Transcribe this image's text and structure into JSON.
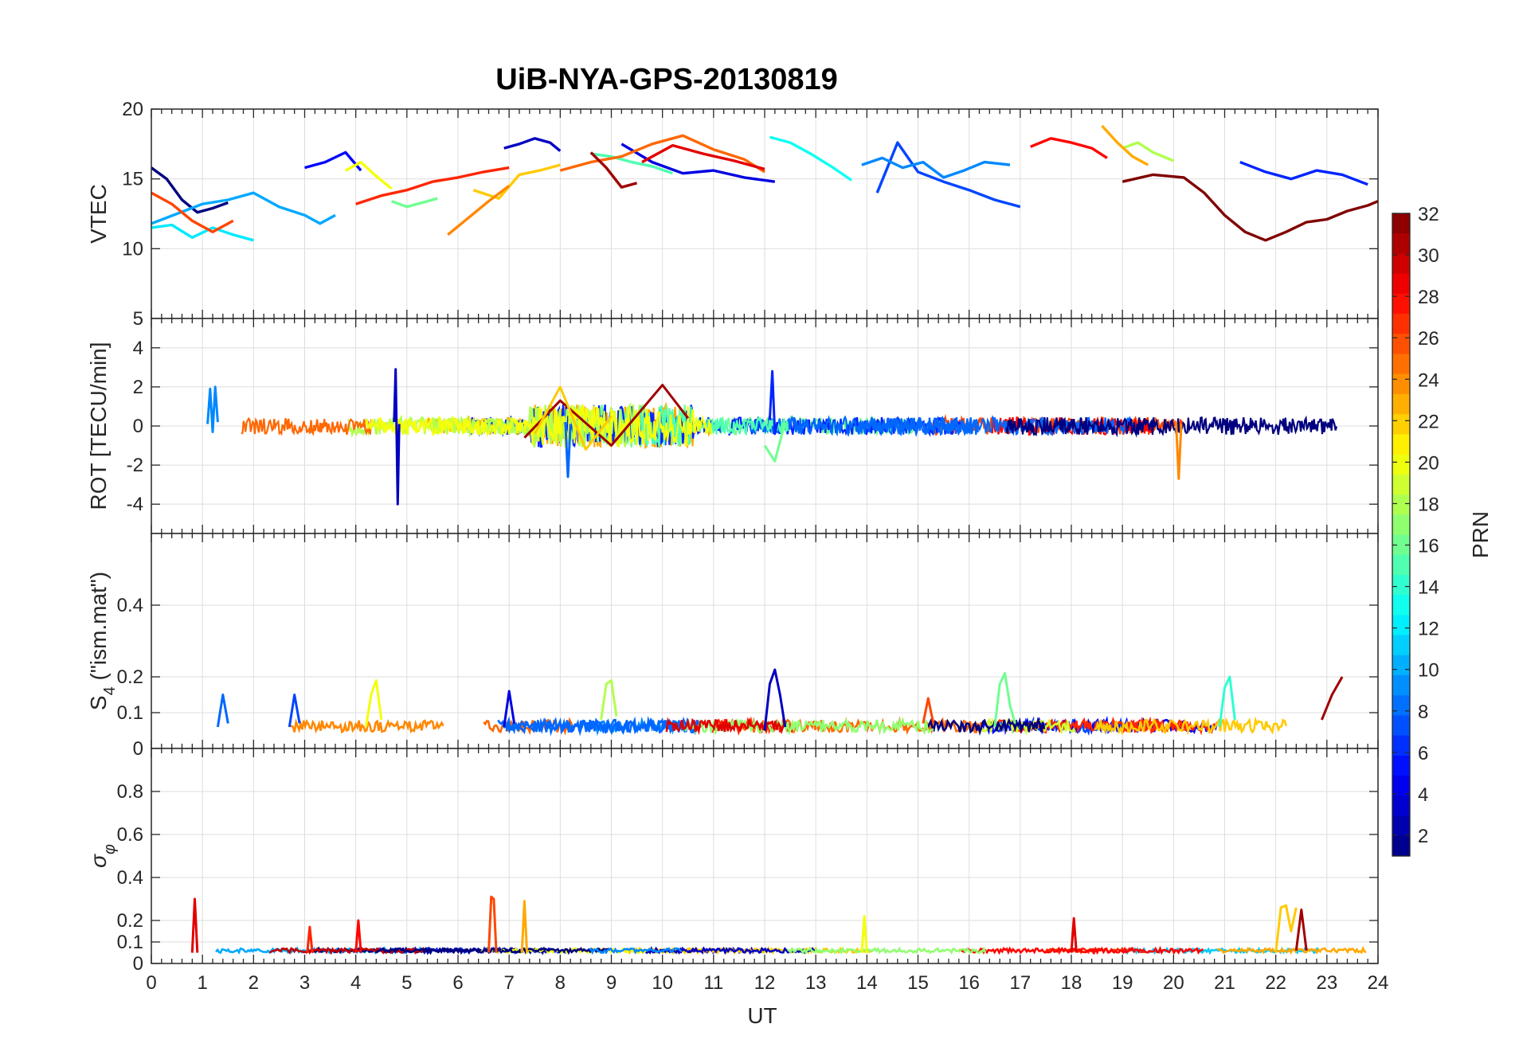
{
  "title": "UiB-NYA-GPS-20130819",
  "xlabel": "UT",
  "x_ticks": [
    0,
    1,
    2,
    3,
    4,
    5,
    6,
    7,
    8,
    9,
    10,
    11,
    12,
    13,
    14,
    15,
    16,
    17,
    18,
    19,
    20,
    21,
    22,
    23,
    24
  ],
  "colorbar": {
    "label": "PRN",
    "range": [
      1,
      32
    ],
    "ticks": [
      2,
      4,
      6,
      8,
      10,
      12,
      14,
      16,
      18,
      20,
      22,
      24,
      26,
      28,
      30,
      32
    ],
    "colormap": "jet",
    "levels": 32
  },
  "panels": {
    "vtec": {
      "ylabel": "VTEC",
      "yticks": [
        5,
        10,
        15,
        20
      ],
      "ylim": [
        5,
        20
      ]
    },
    "rot": {
      "ylabel": "ROT [TECU/min]",
      "yticks": [
        -4,
        -2,
        0,
        2,
        4
      ],
      "ylim": [
        -5.5,
        5.5
      ]
    },
    "s4": {
      "ylabel_main": "S",
      "ylabel_sub": "4",
      "ylabel_rest": " (\"ism.mat\")",
      "yticks": [
        0,
        0.1,
        0.2,
        0.4
      ],
      "ylim": [
        0,
        0.6
      ]
    },
    "sigma": {
      "ylabel_main": "σ",
      "ylabel_sub": "φ",
      "yticks": [
        0,
        0.1,
        0.2,
        0.4,
        0.6,
        0.8
      ],
      "ylim": [
        0,
        1
      ]
    }
  },
  "chart_data": [
    {
      "type": "line",
      "title": "UiB-NYA-GPS-20130819",
      "xlabel": "UT",
      "ylabel": "VTEC",
      "xlim": [
        0,
        24
      ],
      "ylim": [
        5,
        20
      ],
      "grid": true,
      "series": [
        {
          "name": "PRN 1",
          "x": [
            0.0,
            0.3,
            0.6,
            0.9,
            1.2,
            1.5
          ],
          "y": [
            15.8,
            15.0,
            13.5,
            12.6,
            12.9,
            13.3
          ]
        },
        {
          "name": "PRN 3",
          "x": [
            6.9,
            7.2,
            7.5,
            7.8,
            8.0
          ],
          "y": [
            17.2,
            17.5,
            17.9,
            17.6,
            17.0
          ]
        },
        {
          "name": "PRN 4",
          "x": [
            9.2,
            9.8,
            10.4,
            11.0,
            11.6,
            12.2
          ],
          "y": [
            17.5,
            16.2,
            15.4,
            15.6,
            15.1,
            14.8
          ]
        },
        {
          "name": "PRN 5",
          "x": [
            3.0,
            3.4,
            3.8,
            4.1
          ],
          "y": [
            15.8,
            16.2,
            16.9,
            15.6
          ]
        },
        {
          "name": "PRN 6",
          "x": [
            21.3,
            21.8,
            22.3,
            22.8,
            23.3,
            23.8
          ],
          "y": [
            16.2,
            15.5,
            15.0,
            15.6,
            15.3,
            14.6
          ]
        },
        {
          "name": "PRN 7",
          "x": [
            14.2,
            14.6,
            15.0,
            15.5,
            16.0,
            16.5,
            17.0
          ],
          "y": [
            14.0,
            17.6,
            15.5,
            14.8,
            14.2,
            13.5,
            13.0
          ]
        },
        {
          "name": "PRN 9",
          "x": [
            13.9,
            14.3,
            14.7,
            15.1,
            15.5,
            15.9,
            16.3,
            16.8
          ],
          "y": [
            16.0,
            16.5,
            15.8,
            16.2,
            15.1,
            15.6,
            16.2,
            16.0
          ]
        },
        {
          "name": "PRN 10",
          "x": [
            0.0,
            0.5,
            1.0,
            1.5,
            2.0,
            2.5,
            3.0,
            3.3,
            3.6
          ],
          "y": [
            11.8,
            12.5,
            13.2,
            13.5,
            14.0,
            13.0,
            12.4,
            11.8,
            12.4
          ]
        },
        {
          "name": "PRN 12",
          "x": [
            0.0,
            0.4,
            0.8,
            1.2,
            1.6,
            2.0
          ],
          "y": [
            11.5,
            11.7,
            10.8,
            11.5,
            11.0,
            10.6
          ]
        },
        {
          "name": "PRN 13",
          "x": [
            12.1,
            12.5,
            12.9,
            13.3,
            13.7
          ],
          "y": [
            18.0,
            17.6,
            16.8,
            15.9,
            14.9
          ]
        },
        {
          "name": "PRN 15",
          "x": [
            8.6,
            9.0,
            9.4,
            9.8,
            10.2
          ],
          "y": [
            16.8,
            16.6,
            16.2,
            15.9,
            15.4
          ]
        },
        {
          "name": "PRN 16",
          "x": [
            4.7,
            5.0,
            5.3,
            5.6
          ],
          "y": [
            13.4,
            13.0,
            13.3,
            13.6
          ]
        },
        {
          "name": "PRN 18",
          "x": [
            19.0,
            19.3,
            19.6,
            20.0
          ],
          "y": [
            17.2,
            17.6,
            16.9,
            16.3
          ]
        },
        {
          "name": "PRN 20",
          "x": [
            3.8,
            4.1,
            4.4,
            4.7
          ],
          "y": [
            15.6,
            16.2,
            15.2,
            14.3
          ]
        },
        {
          "name": "PRN 22",
          "x": [
            6.3,
            6.8,
            7.2,
            7.6,
            8.0
          ],
          "y": [
            14.2,
            13.6,
            15.3,
            15.6,
            16.0
          ]
        },
        {
          "name": "PRN 23",
          "x": [
            18.6,
            18.9,
            19.2,
            19.5
          ],
          "y": [
            18.8,
            17.6,
            16.6,
            16.0
          ]
        },
        {
          "name": "PRN 24",
          "x": [
            5.8,
            6.2,
            6.6,
            7.0
          ],
          "y": [
            11.0,
            12.2,
            13.4,
            14.5
          ]
        },
        {
          "name": "PRN 25",
          "x": [
            8.0,
            8.6,
            9.2,
            9.8,
            10.4,
            11.0,
            11.6,
            12.0
          ],
          "y": [
            15.6,
            16.2,
            16.6,
            17.5,
            18.1,
            17.1,
            16.4,
            15.5
          ]
        },
        {
          "name": "PRN 26",
          "x": [
            0.0,
            0.4,
            0.8,
            1.2,
            1.6
          ],
          "y": [
            14.0,
            13.2,
            12.0,
            11.2,
            12.0
          ]
        },
        {
          "name": "PRN 27",
          "x": [
            4.0,
            4.5,
            5.0,
            5.5,
            6.0,
            6.5,
            7.0
          ],
          "y": [
            13.2,
            13.8,
            14.2,
            14.8,
            15.1,
            15.5,
            15.8
          ]
        },
        {
          "name": "PRN 28",
          "x": [
            17.2,
            17.6,
            18.0,
            18.4,
            18.7
          ],
          "y": [
            17.3,
            17.9,
            17.6,
            17.2,
            16.5
          ]
        },
        {
          "name": "PRN 29",
          "x": [
            9.6,
            10.2,
            10.8,
            11.4,
            12.0
          ],
          "y": [
            16.2,
            17.4,
            16.8,
            16.3,
            15.7
          ]
        },
        {
          "name": "PRN 31",
          "x": [
            8.6,
            8.9,
            9.2,
            9.5
          ],
          "y": [
            16.9,
            15.8,
            14.4,
            14.7
          ]
        },
        {
          "name": "PRN 32",
          "x": [
            19.0,
            19.6,
            20.2,
            20.6,
            21.0,
            21.4,
            21.8,
            22.2,
            22.6,
            23.0,
            23.4,
            23.8,
            24.0
          ],
          "y": [
            14.8,
            15.3,
            15.1,
            14.0,
            12.4,
            11.2,
            10.6,
            11.2,
            11.9,
            12.1,
            12.7,
            13.1,
            13.4
          ]
        }
      ]
    },
    {
      "type": "line",
      "title": "",
      "xlabel": "UT",
      "ylabel": "ROT [TECU/min]",
      "xlim": [
        0,
        24
      ],
      "ylim": [
        -5.5,
        5.5
      ],
      "grid": true,
      "note_free": "",
      "series": [
        {
          "name": "PRN 3",
          "x": [
            4.75,
            4.78,
            4.8,
            4.82,
            4.85
          ],
          "y": [
            0.2,
            2.9,
            -0.5,
            -4.0,
            0.1
          ]
        },
        {
          "name": "PRN 6",
          "x": [
            12.1,
            12.15,
            12.2,
            12.25
          ],
          "y": [
            0.3,
            2.8,
            -0.4,
            0.2
          ]
        },
        {
          "name": "PRN 8",
          "x": [
            8.1,
            8.15,
            8.2
          ],
          "y": [
            0.2,
            -2.6,
            0.1
          ]
        },
        {
          "name": "PRN 9",
          "x": [
            1.1,
            1.15,
            1.2,
            1.25,
            1.3
          ],
          "y": [
            0.1,
            1.9,
            -0.3,
            2.0,
            0.2
          ]
        },
        {
          "name": "PRN 24",
          "x": [
            20.05,
            20.1,
            20.15
          ],
          "y": [
            0.2,
            -2.7,
            0.1
          ]
        },
        {
          "name": "PRN 31",
          "x": [
            7.3,
            8.0,
            9.0,
            10.0,
            10.5
          ],
          "y": [
            -0.6,
            1.3,
            -1.0,
            2.1,
            0.4
          ]
        },
        {
          "name": "PRN 16",
          "x": [
            12.0,
            12.2,
            12.4
          ],
          "y": [
            -1.0,
            -1.8,
            0.2
          ]
        },
        {
          "name": "PRN 22",
          "x": [
            7.5,
            8.0,
            8.5,
            9.0
          ],
          "y": [
            -0.4,
            2.0,
            -1.2,
            0.5
          ]
        }
      ]
    },
    {
      "type": "line",
      "title": "",
      "xlabel": "UT",
      "ylabel": "S4 (\"ism.mat\")",
      "xlim": [
        0,
        24
      ],
      "ylim": [
        0,
        0.6
      ],
      "grid": true,
      "series": [
        {
          "name": "PRN 3",
          "x": [
            12.0,
            12.1,
            12.2,
            12.3,
            12.4
          ],
          "y": [
            0.05,
            0.18,
            0.22,
            0.15,
            0.06
          ]
        },
        {
          "name": "PRN 16",
          "x": [
            16.5,
            16.6,
            16.7,
            16.8,
            16.9
          ],
          "y": [
            0.06,
            0.18,
            0.21,
            0.12,
            0.07
          ]
        },
        {
          "name": "PRN 18",
          "x": [
            8.8,
            8.9,
            9.0,
            9.1
          ],
          "y": [
            0.08,
            0.18,
            0.19,
            0.09
          ]
        },
        {
          "name": "PRN 20",
          "x": [
            4.2,
            4.3,
            4.4,
            4.5
          ],
          "y": [
            0.06,
            0.15,
            0.19,
            0.08
          ]
        },
        {
          "name": "PRN 14",
          "x": [
            20.9,
            21.0,
            21.1,
            21.2
          ],
          "y": [
            0.06,
            0.17,
            0.2,
            0.08
          ]
        },
        {
          "name": "PRN 4",
          "x": [
            6.9,
            7.0,
            7.1
          ],
          "y": [
            0.06,
            0.16,
            0.07
          ]
        },
        {
          "name": "PRN 8",
          "x": [
            1.3,
            1.4,
            1.5
          ],
          "y": [
            0.06,
            0.15,
            0.07
          ]
        },
        {
          "name": "PRN 7",
          "x": [
            2.7,
            2.8,
            2.9
          ],
          "y": [
            0.06,
            0.15,
            0.07
          ]
        },
        {
          "name": "PRN 26",
          "x": [
            15.1,
            15.2,
            15.3
          ],
          "y": [
            0.07,
            0.14,
            0.07
          ]
        },
        {
          "name": "PRN 31",
          "x": [
            22.9,
            23.1,
            23.3
          ],
          "y": [
            0.08,
            0.15,
            0.2
          ]
        }
      ]
    },
    {
      "type": "line",
      "title": "",
      "xlabel": "UT",
      "ylabel": "σφ",
      "xlim": [
        0,
        24
      ],
      "ylim": [
        0,
        1
      ],
      "grid": true,
      "series": [
        {
          "name": "PRN 29",
          "x": [
            0.8,
            0.85,
            0.9
          ],
          "y": [
            0.05,
            0.3,
            0.05
          ]
        },
        {
          "name": "PRN 27",
          "x": [
            3.05,
            3.1,
            3.15
          ],
          "y": [
            0.05,
            0.17,
            0.05
          ]
        },
        {
          "name": "PRN 28",
          "x": [
            4.0,
            4.05,
            4.1
          ],
          "y": [
            0.05,
            0.2,
            0.05
          ]
        },
        {
          "name": "PRN 26",
          "x": [
            6.6,
            6.65,
            6.7,
            6.75
          ],
          "y": [
            0.05,
            0.31,
            0.3,
            0.05
          ]
        },
        {
          "name": "PRN 23",
          "x": [
            7.25,
            7.3,
            7.35
          ],
          "y": [
            0.05,
            0.29,
            0.05
          ]
        },
        {
          "name": "PRN 20",
          "x": [
            13.9,
            13.95,
            14.0
          ],
          "y": [
            0.05,
            0.22,
            0.05
          ]
        },
        {
          "name": "PRN 29",
          "x": [
            18.0,
            18.05,
            18.1
          ],
          "y": [
            0.05,
            0.21,
            0.05
          ]
        },
        {
          "name": "PRN 22",
          "x": [
            22.0,
            22.1,
            22.2,
            22.3,
            22.4
          ],
          "y": [
            0.05,
            0.26,
            0.27,
            0.15,
            0.26
          ]
        },
        {
          "name": "PRN 31",
          "x": [
            22.4,
            22.5,
            22.6
          ],
          "y": [
            0.06,
            0.25,
            0.06
          ]
        }
      ]
    }
  ]
}
